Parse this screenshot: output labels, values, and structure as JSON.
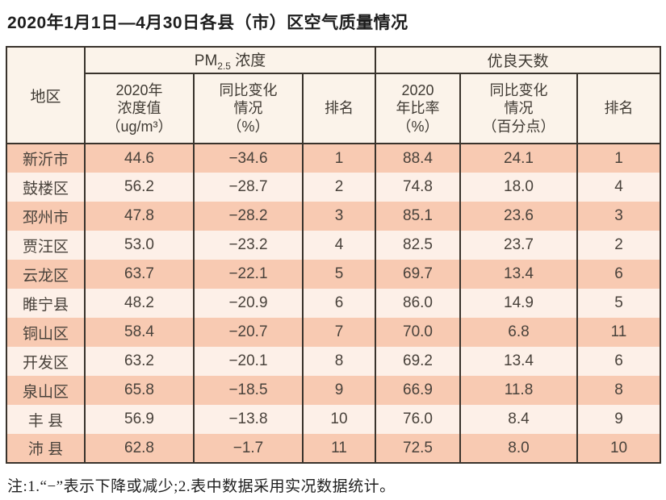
{
  "page": {
    "title": "2020年1月1日—4月30日各县（市）区空气质量情况"
  },
  "table": {
    "corner_header": "地区",
    "group_pm": {
      "prefix": "PM",
      "sub": "2.5",
      "suffix": " 浓度"
    },
    "group_good": {
      "label": "优良天数"
    },
    "subheaders": {
      "pm_value": "2020年\n浓度值\n（ug/m³）",
      "pm_change": "同比变化\n情况\n（%）",
      "pm_rank": "排名",
      "good_ratio": "2020\n年比率\n（%）",
      "good_change": "同比变化\n情况\n（百分点）",
      "good_rank": "排名"
    },
    "rows": [
      {
        "region": "新沂市",
        "values": [
          "44.6",
          "−34.6",
          "1",
          "88.4",
          "24.1",
          "1"
        ]
      },
      {
        "region": "鼓楼区",
        "values": [
          "56.2",
          "−28.7",
          "2",
          "74.8",
          "18.0",
          "4"
        ]
      },
      {
        "region": "邳州市",
        "values": [
          "47.8",
          "−28.2",
          "3",
          "85.1",
          "23.6",
          "3"
        ]
      },
      {
        "region": "贾汪区",
        "values": [
          "53.0",
          "−23.2",
          "4",
          "82.5",
          "23.7",
          "2"
        ]
      },
      {
        "region": "云龙区",
        "values": [
          "63.7",
          "−22.1",
          "5",
          "69.7",
          "13.4",
          "6"
        ]
      },
      {
        "region": "睢宁县",
        "values": [
          "48.2",
          "−20.9",
          "6",
          "86.0",
          "14.9",
          "5"
        ]
      },
      {
        "region": "铜山区",
        "values": [
          "58.4",
          "−20.7",
          "7",
          "70.0",
          "6.8",
          "11"
        ]
      },
      {
        "region": "开发区",
        "values": [
          "63.2",
          "−20.1",
          "8",
          "69.2",
          "13.4",
          "6"
        ]
      },
      {
        "region": "泉山区",
        "values": [
          "65.8",
          "−18.5",
          "9",
          "66.9",
          "11.8",
          "8"
        ]
      },
      {
        "region": "丰 县",
        "values": [
          "56.9",
          "−13.8",
          "10",
          "76.0",
          "8.4",
          "9"
        ]
      },
      {
        "region": "沛 县",
        "values": [
          "62.8",
          "−1.7",
          "11",
          "72.5",
          "8.0",
          "10"
        ]
      }
    ]
  },
  "note": "注:1.“−”表示下降或减少;2.表中数据采用实况数据统计。",
  "colors": {
    "row_odd": "#f8cab2",
    "row_even": "#fdf0e8",
    "header_bg": "#fbf3ea",
    "border": "#39332c",
    "cell_text": "#49423b",
    "title_text": "#1d1d1d"
  },
  "chart_data": {
    "type": "table",
    "title": "2020年1月1日—4月30日各县（市）区空气质量情况",
    "columns": [
      "地区",
      "PM2.5浓度 2020年浓度值（ug/m³）",
      "PM2.5浓度 同比变化情况（%）",
      "PM2.5浓度 排名",
      "优良天数 2020年比率（%）",
      "优良天数 同比变化情况（百分点）",
      "优良天数 排名"
    ],
    "rows": [
      [
        "新沂市",
        44.6,
        -34.6,
        1,
        88.4,
        24.1,
        1
      ],
      [
        "鼓楼区",
        56.2,
        -28.7,
        2,
        74.8,
        18.0,
        4
      ],
      [
        "邳州市",
        47.8,
        -28.2,
        3,
        85.1,
        23.6,
        3
      ],
      [
        "贾汪区",
        53.0,
        -23.2,
        4,
        82.5,
        23.7,
        2
      ],
      [
        "云龙区",
        63.7,
        -22.1,
        5,
        69.7,
        13.4,
        6
      ],
      [
        "睢宁县",
        48.2,
        -20.9,
        6,
        86.0,
        14.9,
        5
      ],
      [
        "铜山区",
        58.4,
        -20.7,
        7,
        70.0,
        6.8,
        11
      ],
      [
        "开发区",
        63.2,
        -20.1,
        8,
        69.2,
        13.4,
        6
      ],
      [
        "泉山区",
        65.8,
        -18.5,
        9,
        66.9,
        11.8,
        8
      ],
      [
        "丰县",
        56.9,
        -13.8,
        10,
        76.0,
        8.4,
        9
      ],
      [
        "沛县",
        62.8,
        -1.7,
        11,
        72.5,
        8.0,
        10
      ]
    ]
  }
}
